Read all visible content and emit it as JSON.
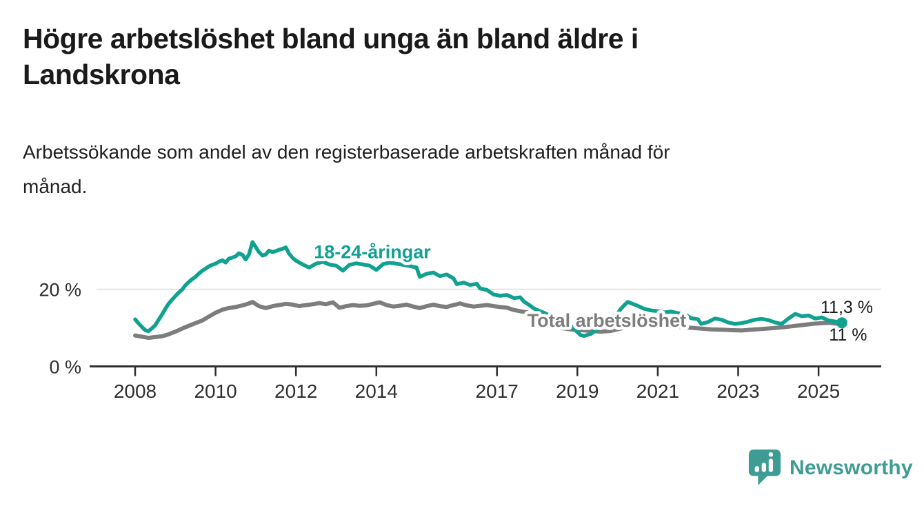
{
  "header": {
    "title_lines": [
      "Högre arbetslöshet bland unga än bland äldre i",
      "Landskrona"
    ],
    "subtitle_lines": [
      "Arbetssökande som andel av den registerbaserade arbetskraften månad för",
      "månad."
    ]
  },
  "chart_data": {
    "type": "line",
    "x_axis": {
      "ticks": [
        2008,
        2010,
        2012,
        2014,
        2017,
        2019,
        2021,
        2023,
        2025
      ],
      "tick_labels": [
        "2008",
        "2010",
        "2012",
        "2014",
        "2017",
        "2019",
        "2021",
        "2023",
        "2025"
      ],
      "range": [
        2007.5,
        2026.5
      ]
    },
    "y_axis": {
      "ticks": [
        0,
        20
      ],
      "tick_labels": [
        "0 %",
        "20 %"
      ],
      "range": [
        0,
        35
      ],
      "gridlines": [
        20
      ]
    },
    "series": [
      {
        "id": "total",
        "name": "Total arbetslöshet",
        "color": "#7d7d7d",
        "width": 6,
        "label_pos": {
          "year": 2019.73,
          "value": 11.9
        },
        "points": [
          [
            2008.0,
            8.0
          ],
          [
            2008.17,
            7.7
          ],
          [
            2008.33,
            7.4
          ],
          [
            2008.5,
            7.6
          ],
          [
            2008.67,
            7.8
          ],
          [
            2008.83,
            8.3
          ],
          [
            2009.0,
            9.0
          ],
          [
            2009.17,
            9.8
          ],
          [
            2009.33,
            10.5
          ],
          [
            2009.5,
            11.2
          ],
          [
            2009.67,
            11.9
          ],
          [
            2009.83,
            12.9
          ],
          [
            2010.0,
            13.9
          ],
          [
            2010.17,
            14.7
          ],
          [
            2010.33,
            15.1
          ],
          [
            2010.5,
            15.4
          ],
          [
            2010.67,
            15.8
          ],
          [
            2010.83,
            16.3
          ],
          [
            2010.92,
            16.7
          ],
          [
            2011.08,
            15.6
          ],
          [
            2011.25,
            15.1
          ],
          [
            2011.42,
            15.6
          ],
          [
            2011.58,
            15.9
          ],
          [
            2011.75,
            16.2
          ],
          [
            2011.92,
            16.0
          ],
          [
            2012.08,
            15.6
          ],
          [
            2012.25,
            15.9
          ],
          [
            2012.42,
            16.1
          ],
          [
            2012.58,
            16.4
          ],
          [
            2012.75,
            16.1
          ],
          [
            2012.92,
            16.6
          ],
          [
            2013.08,
            15.2
          ],
          [
            2013.25,
            15.6
          ],
          [
            2013.42,
            15.9
          ],
          [
            2013.58,
            15.7
          ],
          [
            2013.75,
            15.8
          ],
          [
            2013.92,
            16.2
          ],
          [
            2014.08,
            16.6
          ],
          [
            2014.25,
            15.9
          ],
          [
            2014.42,
            15.5
          ],
          [
            2014.58,
            15.7
          ],
          [
            2014.75,
            16.0
          ],
          [
            2014.92,
            15.5
          ],
          [
            2015.08,
            15.1
          ],
          [
            2015.25,
            15.6
          ],
          [
            2015.42,
            16.0
          ],
          [
            2015.58,
            15.6
          ],
          [
            2015.75,
            15.4
          ],
          [
            2015.92,
            15.9
          ],
          [
            2016.08,
            16.3
          ],
          [
            2016.25,
            15.8
          ],
          [
            2016.42,
            15.5
          ],
          [
            2016.58,
            15.7
          ],
          [
            2016.75,
            15.9
          ],
          [
            2016.92,
            15.6
          ],
          [
            2017.08,
            15.4
          ],
          [
            2017.25,
            15.2
          ],
          [
            2017.42,
            14.6
          ],
          [
            2017.58,
            14.3
          ],
          [
            2017.75,
            14.0
          ],
          [
            2017.92,
            13.1
          ],
          [
            2018.08,
            12.2
          ],
          [
            2018.25,
            11.4
          ],
          [
            2018.42,
            10.6
          ],
          [
            2018.58,
            10.0
          ],
          [
            2018.75,
            9.7
          ],
          [
            2018.92,
            9.5
          ],
          [
            2019.08,
            9.4
          ],
          [
            2019.33,
            9.2
          ],
          [
            2019.58,
            9.0
          ],
          [
            2019.83,
            9.2
          ],
          [
            2020.08,
            9.8
          ],
          [
            2020.25,
            10.6
          ],
          [
            2020.42,
            11.2
          ],
          [
            2020.58,
            11.3
          ],
          [
            2020.83,
            11.0
          ],
          [
            2021.08,
            10.7
          ],
          [
            2021.33,
            10.4
          ],
          [
            2021.58,
            10.2
          ],
          [
            2021.83,
            10.0
          ],
          [
            2022.08,
            9.8
          ],
          [
            2022.33,
            9.6
          ],
          [
            2022.58,
            9.5
          ],
          [
            2022.83,
            9.4
          ],
          [
            2023.08,
            9.3
          ],
          [
            2023.33,
            9.5
          ],
          [
            2023.58,
            9.7
          ],
          [
            2023.83,
            9.9
          ],
          [
            2024.08,
            10.1
          ],
          [
            2024.33,
            10.4
          ],
          [
            2024.58,
            10.7
          ],
          [
            2024.83,
            11.0
          ],
          [
            2025.08,
            11.2
          ],
          [
            2025.25,
            11.3
          ],
          [
            2025.42,
            11.1
          ],
          [
            2025.58,
            11.0
          ]
        ]
      },
      {
        "id": "youth",
        "name": "18-24-åringar",
        "color": "#10a191",
        "width": 5.5,
        "label_pos": {
          "year": 2013.9,
          "value": 29.6
        },
        "points": [
          [
            2008.0,
            12.2
          ],
          [
            2008.08,
            11.2
          ],
          [
            2008.17,
            10.2
          ],
          [
            2008.25,
            9.4
          ],
          [
            2008.33,
            9.1
          ],
          [
            2008.42,
            9.9
          ],
          [
            2008.5,
            10.7
          ],
          [
            2008.58,
            12.0
          ],
          [
            2008.67,
            13.5
          ],
          [
            2008.75,
            14.9
          ],
          [
            2008.83,
            16.2
          ],
          [
            2008.92,
            17.3
          ],
          [
            2009.0,
            18.2
          ],
          [
            2009.08,
            19.1
          ],
          [
            2009.17,
            19.9
          ],
          [
            2009.25,
            21.0
          ],
          [
            2009.33,
            21.8
          ],
          [
            2009.42,
            22.6
          ],
          [
            2009.5,
            23.2
          ],
          [
            2009.58,
            24.0
          ],
          [
            2009.67,
            24.8
          ],
          [
            2009.75,
            25.3
          ],
          [
            2009.83,
            25.9
          ],
          [
            2009.92,
            26.3
          ],
          [
            2010.0,
            26.6
          ],
          [
            2010.08,
            27.1
          ],
          [
            2010.17,
            27.5
          ],
          [
            2010.25,
            26.9
          ],
          [
            2010.33,
            27.9
          ],
          [
            2010.42,
            28.2
          ],
          [
            2010.5,
            28.5
          ],
          [
            2010.58,
            29.3
          ],
          [
            2010.67,
            28.9
          ],
          [
            2010.75,
            27.7
          ],
          [
            2010.83,
            29.0
          ],
          [
            2010.92,
            32.2
          ],
          [
            2011.0,
            30.9
          ],
          [
            2011.08,
            29.6
          ],
          [
            2011.17,
            28.7
          ],
          [
            2011.25,
            29.0
          ],
          [
            2011.33,
            30.0
          ],
          [
            2011.42,
            29.6
          ],
          [
            2011.5,
            29.9
          ],
          [
            2011.58,
            30.2
          ],
          [
            2011.67,
            30.5
          ],
          [
            2011.75,
            30.8
          ],
          [
            2011.83,
            29.2
          ],
          [
            2011.92,
            28.1
          ],
          [
            2012.0,
            27.4
          ],
          [
            2012.17,
            26.4
          ],
          [
            2012.33,
            25.6
          ],
          [
            2012.5,
            26.6
          ],
          [
            2012.67,
            27.1
          ],
          [
            2012.83,
            26.4
          ],
          [
            2013.0,
            26.1
          ],
          [
            2013.17,
            24.8
          ],
          [
            2013.33,
            26.3
          ],
          [
            2013.5,
            26.7
          ],
          [
            2013.67,
            26.4
          ],
          [
            2013.83,
            26.1
          ],
          [
            2014.0,
            25.0
          ],
          [
            2014.17,
            26.5
          ],
          [
            2014.33,
            26.9
          ],
          [
            2014.5,
            26.6
          ],
          [
            2014.67,
            26.3
          ],
          [
            2014.83,
            26.0
          ],
          [
            2015.0,
            25.6
          ],
          [
            2015.08,
            23.2
          ],
          [
            2015.25,
            24.0
          ],
          [
            2015.42,
            24.3
          ],
          [
            2015.58,
            23.4
          ],
          [
            2015.75,
            23.8
          ],
          [
            2015.92,
            22.8
          ],
          [
            2016.0,
            21.3
          ],
          [
            2016.17,
            21.7
          ],
          [
            2016.33,
            21.1
          ],
          [
            2016.5,
            21.4
          ],
          [
            2016.58,
            20.2
          ],
          [
            2016.75,
            19.8
          ],
          [
            2016.92,
            18.6
          ],
          [
            2017.08,
            18.3
          ],
          [
            2017.25,
            18.5
          ],
          [
            2017.42,
            17.7
          ],
          [
            2017.58,
            17.9
          ],
          [
            2017.67,
            16.8
          ],
          [
            2017.83,
            15.7
          ],
          [
            2017.92,
            15.0
          ],
          [
            2018.0,
            14.6
          ],
          [
            2018.17,
            13.9
          ],
          [
            2018.33,
            13.1
          ],
          [
            2018.5,
            12.6
          ],
          [
            2018.67,
            12.3
          ],
          [
            2018.83,
            10.6
          ],
          [
            2019.0,
            8.9
          ],
          [
            2019.08,
            8.1
          ],
          [
            2019.17,
            7.9
          ],
          [
            2019.33,
            8.4
          ],
          [
            2019.5,
            9.6
          ],
          [
            2019.67,
            11.0
          ],
          [
            2019.83,
            12.5
          ],
          [
            2020.0,
            13.7
          ],
          [
            2020.08,
            14.9
          ],
          [
            2020.17,
            15.9
          ],
          [
            2020.25,
            16.7
          ],
          [
            2020.33,
            16.4
          ],
          [
            2020.5,
            15.7
          ],
          [
            2020.67,
            14.9
          ],
          [
            2020.83,
            14.5
          ],
          [
            2021.0,
            14.3
          ],
          [
            2021.17,
            14.0
          ],
          [
            2021.33,
            14.2
          ],
          [
            2021.5,
            13.8
          ],
          [
            2021.67,
            13.5
          ],
          [
            2021.83,
            12.5
          ],
          [
            2022.0,
            12.2
          ],
          [
            2022.08,
            11.0
          ],
          [
            2022.25,
            11.5
          ],
          [
            2022.42,
            12.4
          ],
          [
            2022.58,
            12.1
          ],
          [
            2022.75,
            11.4
          ],
          [
            2022.92,
            11.0
          ],
          [
            2023.08,
            11.2
          ],
          [
            2023.25,
            11.6
          ],
          [
            2023.42,
            12.1
          ],
          [
            2023.58,
            12.3
          ],
          [
            2023.75,
            12.0
          ],
          [
            2023.92,
            11.4
          ],
          [
            2024.08,
            11.0
          ],
          [
            2024.25,
            12.4
          ],
          [
            2024.42,
            13.6
          ],
          [
            2024.58,
            13.0
          ],
          [
            2024.75,
            13.2
          ],
          [
            2024.92,
            12.4
          ],
          [
            2025.08,
            12.7
          ],
          [
            2025.25,
            11.9
          ],
          [
            2025.42,
            11.6
          ],
          [
            2025.58,
            11.3
          ]
        ]
      }
    ],
    "end_dot": {
      "year": 2025.58,
      "value": 11.3,
      "color": "#10a191"
    },
    "end_annotations": [
      {
        "text": "11,3 %",
        "year": 2025.05,
        "value": 13.85
      },
      {
        "text": "11 %",
        "year": 2025.26,
        "value": 6.7
      }
    ],
    "legend_position": "inline-labels",
    "grid": "y-20-only"
  },
  "footer": {
    "brand": "Newsworthy",
    "brand_color": "#3e9c95"
  }
}
